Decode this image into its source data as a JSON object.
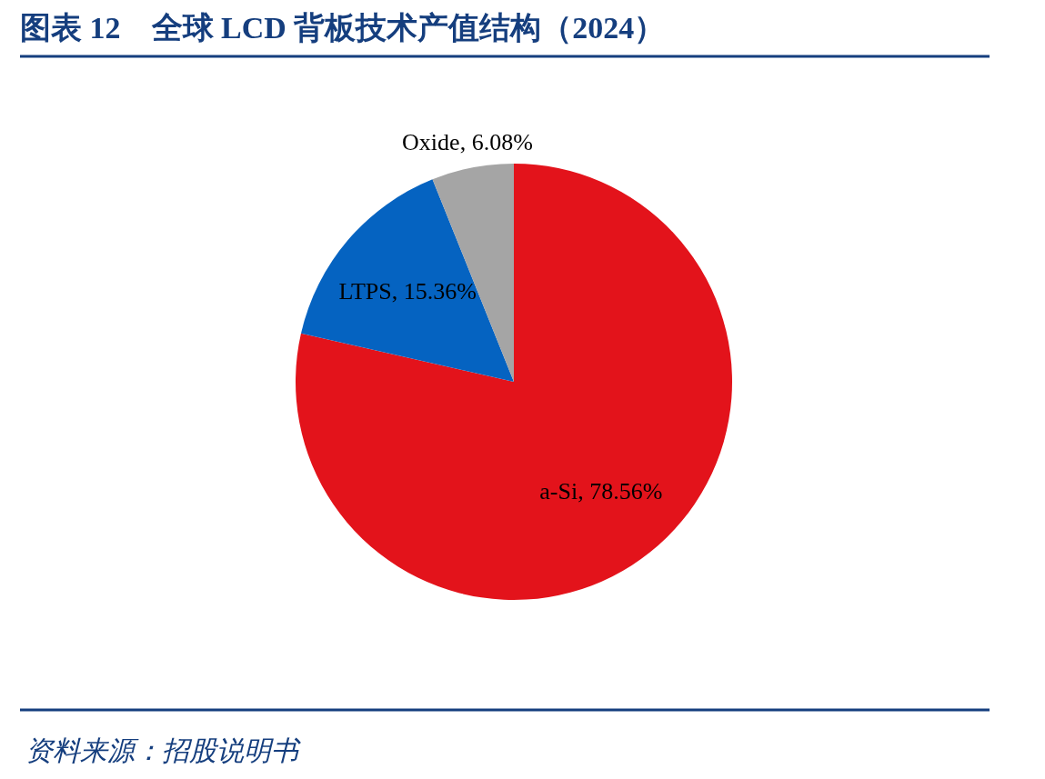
{
  "chart_data": {
    "type": "pie",
    "title": "图表 12　全球 LCD 背板技术产值结构（2024）",
    "categories": [
      "a-Si",
      "LTPS",
      "Oxide"
    ],
    "values": [
      78.56,
      15.36,
      6.08
    ],
    "value_labels": [
      ", 78.56%",
      ", 15.36%",
      ", 6.08%"
    ],
    "colors": [
      "#e3131b",
      "#0563c1",
      "#a5a5a5"
    ],
    "annotations": [
      "资料来源：招股说明书"
    ]
  }
}
